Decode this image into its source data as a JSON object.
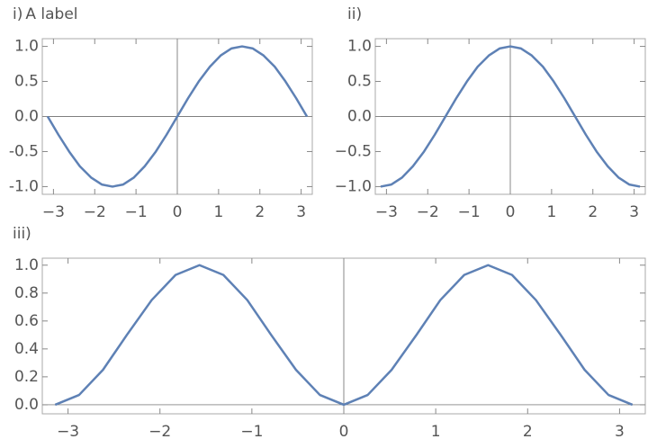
{
  "chart_data": [
    {
      "type": "line",
      "label": "i)",
      "title": "A label",
      "color": "#5e81b5",
      "axes": true,
      "x": [
        -3.14,
        -2.88,
        -2.62,
        -2.36,
        -2.09,
        -1.83,
        -1.57,
        -1.31,
        -1.05,
        -0.79,
        -0.52,
        -0.26,
        0,
        0.26,
        0.52,
        0.79,
        1.05,
        1.31,
        1.57,
        1.83,
        2.09,
        2.36,
        2.62,
        2.88,
        3.14
      ],
      "values": [
        0,
        -0.26,
        -0.5,
        -0.71,
        -0.87,
        -0.97,
        -1,
        -0.97,
        -0.87,
        -0.71,
        -0.5,
        -0.26,
        0,
        0.26,
        0.5,
        0.71,
        0.87,
        0.97,
        1,
        0.97,
        0.87,
        0.71,
        0.5,
        0.26,
        0
      ],
      "xlim": [
        -3.27,
        3.27
      ],
      "ylim": [
        -1.11,
        1.11
      ],
      "xticks": [
        {
          "value": -3,
          "label": "−3"
        },
        {
          "value": -2,
          "label": "−2"
        },
        {
          "value": -1,
          "label": "−1"
        },
        0,
        1,
        2,
        3
      ],
      "yticks": [
        {
          "value": -1,
          "label": "-1.0"
        },
        {
          "value": -0.5,
          "label": "-0.5"
        },
        {
          "value": 0,
          "label": "0.0"
        },
        {
          "value": 0.5,
          "label": "0.5"
        },
        {
          "value": 1,
          "label": "1.0"
        }
      ]
    },
    {
      "type": "line",
      "label": "ii)",
      "color": "#5e81b5",
      "axes": true,
      "x": [
        -3.14,
        -2.88,
        -2.62,
        -2.36,
        -2.09,
        -1.83,
        -1.57,
        -1.31,
        -1.05,
        -0.79,
        -0.52,
        -0.26,
        0,
        0.26,
        0.52,
        0.79,
        1.05,
        1.31,
        1.57,
        1.83,
        2.09,
        2.36,
        2.62,
        2.88,
        3.14
      ],
      "values": [
        -1,
        -0.97,
        -0.87,
        -0.71,
        -0.5,
        -0.26,
        0,
        0.26,
        0.5,
        0.71,
        0.87,
        0.97,
        1,
        0.97,
        0.87,
        0.71,
        0.5,
        0.26,
        0,
        -0.26,
        -0.5,
        -0.71,
        -0.87,
        -0.97,
        -1
      ],
      "xlim": [
        -3.27,
        3.27
      ],
      "ylim": [
        -1.11,
        1.11
      ],
      "xticks": [
        {
          "value": -3,
          "label": "−3"
        },
        {
          "value": -2,
          "label": "−2"
        },
        {
          "value": -1,
          "label": "−1"
        },
        0,
        1,
        2,
        3
      ],
      "yticks": [
        {
          "value": -1,
          "label": "−1.0"
        },
        {
          "value": -0.5,
          "label": "−0.5"
        },
        {
          "value": 0,
          "label": "0.0"
        },
        {
          "value": 0.5,
          "label": "0.5"
        },
        {
          "value": 1,
          "label": "1.0"
        }
      ]
    },
    {
      "type": "line",
      "label": "iii)",
      "color": "#5e81b5",
      "axes": true,
      "x": [
        -3.14,
        -2.88,
        -2.62,
        -2.36,
        -2.09,
        -1.83,
        -1.57,
        -1.31,
        -1.05,
        -0.79,
        -0.52,
        -0.26,
        0,
        0.26,
        0.52,
        0.79,
        1.05,
        1.31,
        1.57,
        1.83,
        2.09,
        2.36,
        2.62,
        2.88,
        3.14
      ],
      "values": [
        0,
        0.07,
        0.25,
        0.5,
        0.75,
        0.93,
        1,
        0.93,
        0.75,
        0.5,
        0.25,
        0.07,
        0,
        0.07,
        0.25,
        0.5,
        0.75,
        0.93,
        1,
        0.93,
        0.75,
        0.5,
        0.25,
        0.07,
        0
      ],
      "xlim": [
        -3.28,
        3.28
      ],
      "ylim": [
        -0.065,
        1.05
      ],
      "xticks": [
        {
          "value": -3,
          "label": "−3"
        },
        {
          "value": -2,
          "label": "−2"
        },
        {
          "value": -1,
          "label": "−1"
        },
        0,
        1,
        2,
        3
      ],
      "yticks": [
        {
          "value": 0,
          "label": "0.0"
        },
        {
          "value": 0.2,
          "label": "0.2"
        },
        {
          "value": 0.4,
          "label": "0.4"
        },
        {
          "value": 0.6,
          "label": "0.6"
        },
        {
          "value": 0.8,
          "label": "0.8"
        },
        {
          "value": 1,
          "label": "1.0"
        }
      ]
    }
  ]
}
